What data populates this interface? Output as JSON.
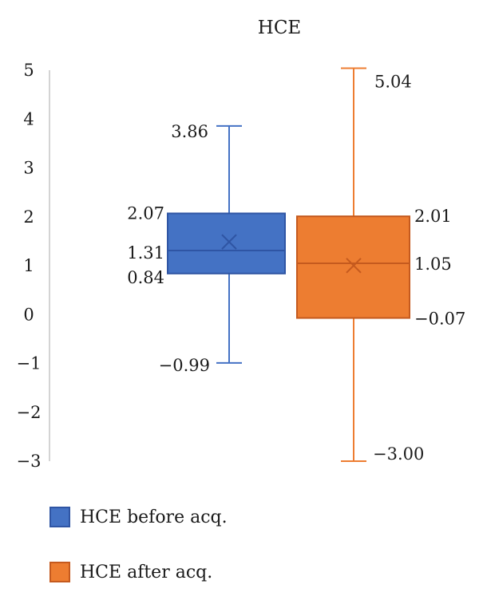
{
  "chart_data": {
    "type": "box",
    "title": "HCE",
    "ylim": [
      -3,
      5
    ],
    "yticks": [
      "5",
      "4",
      "3",
      "2",
      "1",
      "0",
      "−1",
      "−2",
      "−3"
    ],
    "ytick_values": [
      5,
      4,
      3,
      2,
      1,
      0,
      -1,
      -2,
      -3
    ],
    "grid": false,
    "legend_position": "bottom-left",
    "series": [
      {
        "name": "HCE before acq.",
        "color": "#4472C4",
        "edge_color": "#2F55A4",
        "whisker_low": -0.99,
        "q1": 0.84,
        "median": 1.31,
        "q3": 2.07,
        "whisker_high": 3.86,
        "mean_marker": "x",
        "labels": {
          "whisker_high": "3.86",
          "q3": "2.07",
          "median": "1.31",
          "q1": "0.84",
          "whisker_low": "−0.99"
        },
        "label_side": "left"
      },
      {
        "name": "HCE after acq.",
        "color": "#ED7D31",
        "edge_color": "#C55A1E",
        "whisker_low": -3.0,
        "q1": -0.07,
        "median": 1.05,
        "q3": 2.01,
        "whisker_high": 5.04,
        "mean_marker": "x",
        "labels": {
          "whisker_high": "5.04",
          "q3": "2.01",
          "median": "1.05",
          "q1": "−0.07",
          "whisker_low": "−3.00"
        },
        "label_side": "right"
      }
    ]
  }
}
